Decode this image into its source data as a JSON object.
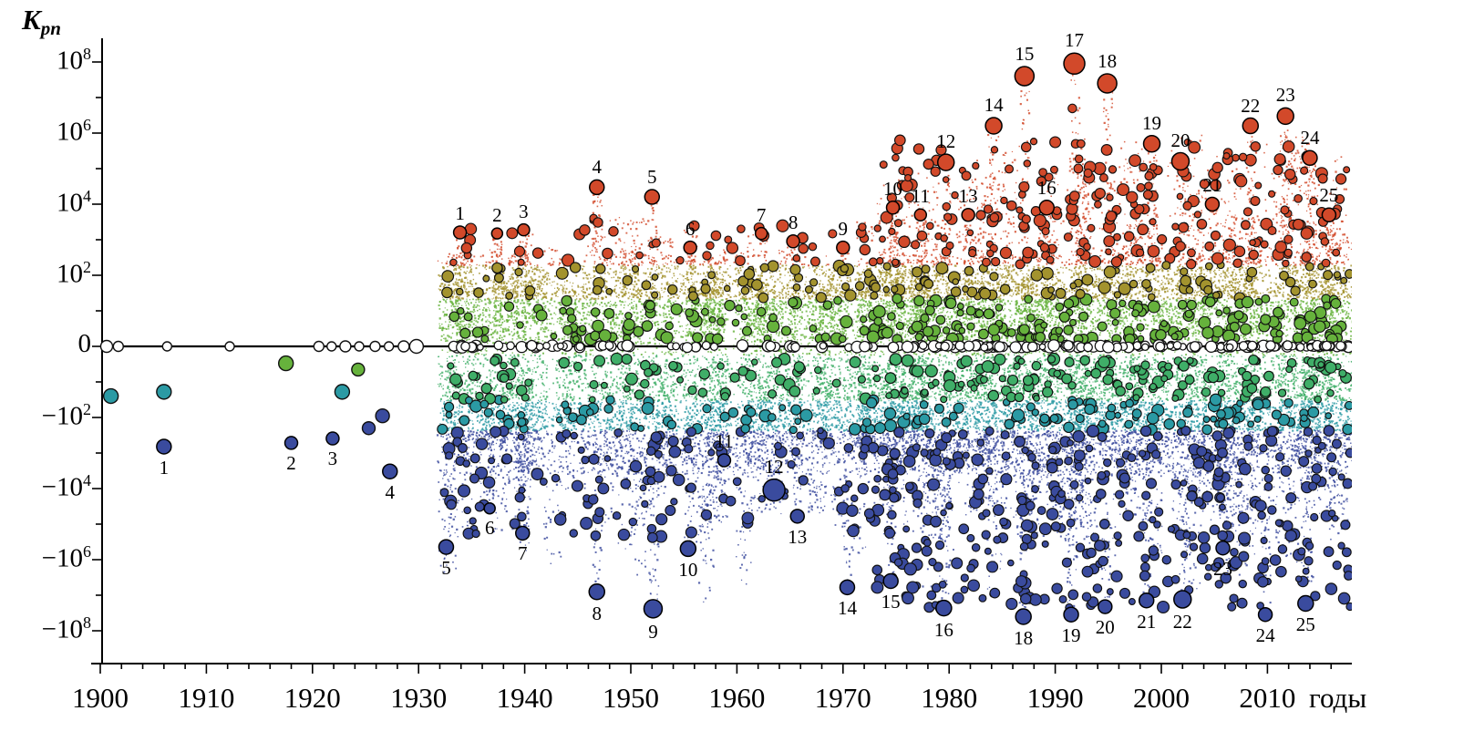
{
  "chart_data": {
    "type": "scatter",
    "title": "",
    "xlabel": "годы",
    "ylabel_main": "K",
    "ylabel_sub": "pn",
    "y_scale": "symlog",
    "x_ticks": [
      1900,
      1910,
      1920,
      1930,
      1940,
      1950,
      1960,
      1970,
      1980,
      1990,
      2000,
      2010
    ],
    "y_ticks": [
      {
        "mantissa": "10",
        "exp": "8",
        "e": 8
      },
      {
        "mantissa": "10",
        "exp": "6",
        "e": 6
      },
      {
        "mantissa": "10",
        "exp": "4",
        "e": 4
      },
      {
        "mantissa": "10",
        "exp": "2",
        "e": 2
      },
      {
        "mantissa": "0",
        "exp": "",
        "e": 0
      },
      {
        "mantissa": "−10",
        "exp": "2",
        "e": -2
      },
      {
        "mantissa": "−10",
        "exp": "4",
        "e": -4
      },
      {
        "mantissa": "−10",
        "exp": "6",
        "e": -6
      },
      {
        "mantissa": "−10",
        "exp": "8",
        "e": -8
      }
    ],
    "axis_range": {
      "x_min": 1899,
      "x_max": 2018.5,
      "y_abs_max_exponent": 8
    },
    "colors": {
      "red": "#d2492a",
      "olive": "#a3932e",
      "green_pos": "#66b23c",
      "green_neg": "#3fae68",
      "teal": "#2b9aa4",
      "blue": "#3a4b9e",
      "open": "#ffffff",
      "stroke": "#111111",
      "axis": "#000000"
    },
    "events_positive": [
      {
        "n": 1,
        "year": 1933.9,
        "kpn": 1600,
        "r": 7
      },
      {
        "n": 2,
        "year": 1937.4,
        "kpn": 1500,
        "r": 6
      },
      {
        "n": 3,
        "year": 1939.9,
        "kpn": 1900,
        "r": 6.5
      },
      {
        "n": 4,
        "year": 1946.8,
        "kpn": 30000,
        "r": 8
      },
      {
        "n": 5,
        "year": 1952.0,
        "kpn": 16000,
        "r": 8
      },
      {
        "n": 6,
        "year": 1955.6,
        "kpn": 600,
        "r": 7
      },
      {
        "n": 7,
        "year": 1962.3,
        "kpn": 1500,
        "r": 6.5
      },
      {
        "n": 8,
        "year": 1965.3,
        "kpn": 900,
        "r": 7
      },
      {
        "n": 9,
        "year": 1970.0,
        "kpn": 600,
        "r": 7
      },
      {
        "n": 10,
        "year": 1974.7,
        "kpn": 8000,
        "r": 7
      },
      {
        "n": 11,
        "year": 1977.3,
        "kpn": 5000,
        "r": 6.5
      },
      {
        "n": 12,
        "year": 1979.7,
        "kpn": 150000,
        "r": 9
      },
      {
        "n": 13,
        "year": 1981.8,
        "kpn": 5000,
        "r": 7
      },
      {
        "n": 14,
        "year": 1984.2,
        "kpn": 1600000,
        "r": 9
      },
      {
        "n": 15,
        "year": 1987.1,
        "kpn": 40000000,
        "r": 10.5
      },
      {
        "n": 16,
        "year": 1989.2,
        "kpn": 8000,
        "r": 8
      },
      {
        "n": 17,
        "year": 1991.8,
        "kpn": 90000000,
        "r": 11.5
      },
      {
        "n": 18,
        "year": 1994.9,
        "kpn": 25000000,
        "r": 10.5
      },
      {
        "n": 19,
        "year": 1999.1,
        "kpn": 500000,
        "r": 9
      },
      {
        "n": 20,
        "year": 2001.8,
        "kpn": 160000,
        "r": 9.5
      },
      {
        "n": 21,
        "year": 2004.8,
        "kpn": 10000,
        "r": 7.5
      },
      {
        "n": 22,
        "year": 2008.4,
        "kpn": 1600000,
        "r": 8.5
      },
      {
        "n": 23,
        "year": 2011.7,
        "kpn": 3000000,
        "r": 9
      },
      {
        "n": 24,
        "year": 2014.0,
        "kpn": 200000,
        "r": 8
      },
      {
        "n": 25,
        "year": 2015.8,
        "kpn": 5000,
        "r": 7.5
      }
    ],
    "events_negative": [
      {
        "n": 1,
        "year": 1906.0,
        "kpn": -660,
        "r": 8
      },
      {
        "n": 2,
        "year": 1918.0,
        "kpn": -520,
        "r": 7
      },
      {
        "n": 3,
        "year": 1921.9,
        "kpn": -390,
        "r": 7
      },
      {
        "n": 4,
        "year": 1927.3,
        "kpn": -3300,
        "r": 8
      },
      {
        "n": 5,
        "year": 1932.6,
        "kpn": -440000,
        "r": 8
      },
      {
        "n": 6,
        "year": 1936.7,
        "kpn": -36000,
        "r": 6
      },
      {
        "n": 7,
        "year": 1939.8,
        "kpn": -180000,
        "r": 7.5
      },
      {
        "n": 8,
        "year": 1946.8,
        "kpn": -8000000,
        "r": 8.5
      },
      {
        "n": 9,
        "year": 1952.1,
        "kpn": -24000000,
        "r": 10
      },
      {
        "n": 10,
        "year": 1955.4,
        "kpn": -490000,
        "r": 8.5
      },
      {
        "n": 11,
        "year": 1958.8,
        "kpn": -1600,
        "r": 7,
        "lpos": "above"
      },
      {
        "n": 12,
        "year": 1963.5,
        "kpn": -11000,
        "r": 12,
        "lpos": "above"
      },
      {
        "n": 13,
        "year": 1965.7,
        "kpn": -60000,
        "r": 7.5
      },
      {
        "n": 14,
        "year": 1970.4,
        "kpn": -6000000,
        "r": 8
      },
      {
        "n": 15,
        "year": 1974.5,
        "kpn": -4000000,
        "r": 8
      },
      {
        "n": 16,
        "year": 1979.5,
        "kpn": -23000000,
        "r": 8.5
      },
      {
        "n": 18,
        "year": 1987.0,
        "kpn": -40000000,
        "r": 8.5
      },
      {
        "n": 19,
        "year": 1991.5,
        "kpn": -35000000,
        "r": 8
      },
      {
        "n": 20,
        "year": 1994.7,
        "kpn": -21000000,
        "r": 7.5
      },
      {
        "n": 21,
        "year": 1998.6,
        "kpn": -14000000,
        "r": 8
      },
      {
        "n": 22,
        "year": 2002.0,
        "kpn": -13000000,
        "r": 9.5
      },
      {
        "n": 23,
        "year": 2005.8,
        "kpn": -470000,
        "r": 7.5
      },
      {
        "n": 24,
        "year": 2009.8,
        "kpn": -35000000,
        "r": 7.5
      },
      {
        "n": 25,
        "year": 2013.6,
        "kpn": -17000000,
        "r": 8.5
      }
    ],
    "early_points": [
      {
        "year": 1901.0,
        "kpn": -25,
        "color": "teal",
        "r": 8
      },
      {
        "year": 1906.0,
        "kpn": -19,
        "color": "teal",
        "r": 8
      },
      {
        "year": 1917.5,
        "kpn": -3,
        "color": "green_pos",
        "r": 8
      },
      {
        "year": 1922.8,
        "kpn": -19,
        "color": "teal",
        "r": 8
      },
      {
        "year": 1924.3,
        "kpn": -4.5,
        "color": "green_pos",
        "r": 7
      },
      {
        "year": 1925.3,
        "kpn": -200,
        "color": "blue",
        "r": 7
      },
      {
        "year": 1926.6,
        "kpn": -90,
        "color": "blue",
        "r": 7.5
      }
    ],
    "early_zero_circles": [
      {
        "year": 1900.6,
        "r": 6.5
      },
      {
        "year": 1901.7,
        "r": 5.5
      },
      {
        "year": 1906.3,
        "r": 5
      },
      {
        "year": 1912.2,
        "r": 5
      },
      {
        "year": 1920.6,
        "r": 5.5
      },
      {
        "year": 1921.8,
        "r": 5
      },
      {
        "year": 1923.1,
        "r": 6
      },
      {
        "year": 1924.4,
        "r": 5
      },
      {
        "year": 1925.9,
        "r": 5.5
      },
      {
        "year": 1927.2,
        "r": 5
      },
      {
        "year": 1928.6,
        "r": 6
      },
      {
        "year": 1929.8,
        "r": 7.5
      }
    ],
    "background": {
      "seed": 42,
      "year_start": 1932.5,
      "year_end": 2018,
      "dense_after": 1972,
      "clusters": 260,
      "diffuse_dots": 5200,
      "medium_circles": 1400,
      "zero_open_circles": 240
    }
  }
}
